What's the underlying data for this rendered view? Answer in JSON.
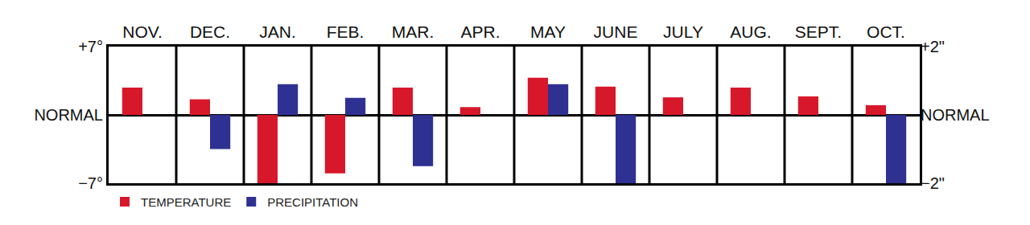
{
  "chart_data": {
    "type": "bar",
    "categories": [
      "NOV.",
      "DEC.",
      "JAN.",
      "FEB.",
      "MAR.",
      "APR.",
      "MAY",
      "JUNE",
      "JULY",
      "AUG.",
      "SEPT.",
      "OCT."
    ],
    "series": [
      {
        "name": "TEMPERATURE",
        "color": "#d7182a",
        "values": [
          2.8,
          1.6,
          -7.0,
          -6.0,
          2.8,
          0.8,
          3.8,
          2.9,
          1.8,
          2.8,
          1.9,
          1.0
        ]
      },
      {
        "name": "PRECIPITATION",
        "color": "#2e3192",
        "axis": "y2",
        "values": [
          0,
          -1.0,
          0.9,
          0.5,
          -1.5,
          0,
          0.9,
          -2.0,
          0,
          0,
          0,
          -2.0
        ]
      }
    ],
    "ylim": [
      -7,
      7
    ],
    "yticks": [
      {
        "value": 7,
        "label": "+7°"
      },
      {
        "value": 0,
        "label": "NORMAL"
      },
      {
        "value": -7,
        "label": "−7°"
      }
    ],
    "y2lim": [
      -2,
      2
    ],
    "y2ticks": [
      {
        "value": 2,
        "label": "+2\""
      },
      {
        "value": 0,
        "label": "NORMAL"
      },
      {
        "value": -2,
        "label": "−2\""
      }
    ],
    "grid": true,
    "legend": "bottom left"
  }
}
